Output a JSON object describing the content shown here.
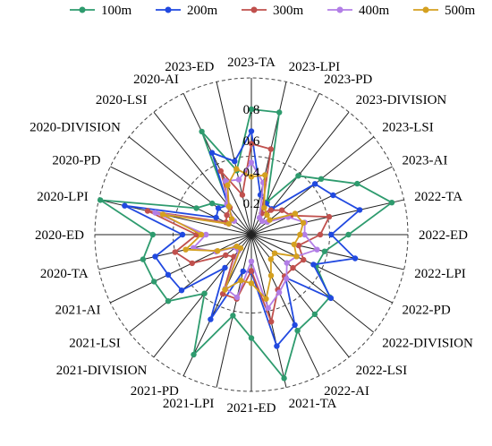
{
  "chart_data": {
    "type": "radar",
    "categories": [
      "2023-TA",
      "2023-LPI",
      "2023-PD",
      "2023-DIVISION",
      "2023-LSI",
      "2023-AI",
      "2022-TA",
      "2022-ED",
      "2022-LPI",
      "2022-PD",
      "2022-DIVISION",
      "2022-LSI",
      "2022-AI",
      "2021-TA",
      "2021-ED",
      "2021-LPI",
      "2021-PD",
      "2021-DIVISION",
      "2021-LSI",
      "2021-AI",
      "2020-TA",
      "2020-ED",
      "2020-LPI",
      "2020-PD",
      "2020-DIVISION",
      "2020-LSI",
      "2020-AI",
      "2023-ED"
    ],
    "rlim": [
      0,
      1.0
    ],
    "ticks": [
      "0.2",
      "0.4",
      "0.6",
      "0.8"
    ],
    "tick_values": [
      0.2,
      0.4,
      0.6,
      0.8
    ],
    "dashed_rings": [
      0.5,
      1.0
    ],
    "series": [
      {
        "name": "100m",
        "color": "#2e9b6e",
        "values": [
          0.8,
          0.8,
          0.23,
          0.48,
          0.57,
          0.75,
          0.92,
          0.62,
          0.48,
          0.46,
          0.64,
          0.65,
          0.68,
          0.94,
          0.66,
          0.53,
          0.85,
          0.48,
          0.68,
          0.69,
          0.71,
          0.63,
          0.99,
          0.39,
          0.32,
          0.23,
          0.73,
          0.42
        ]
      },
      {
        "name": "200m",
        "color": "#2149e0",
        "values": [
          0.66,
          0.26,
          0.22,
          0.21,
          0.52,
          0.58,
          0.71,
          0.51,
          0.68,
          0.44,
          0.65,
          0.35,
          0.64,
          0.73,
          0.24,
          0.24,
          0.6,
          0.27,
          0.57,
          0.59,
          0.63,
          0.44,
          0.83,
          0.25,
          0.27,
          0.24,
          0.58,
          0.48
        ]
      },
      {
        "name": "300m",
        "color": "#c0504d",
        "values": [
          0.58,
          0.56,
          0.15,
          0.2,
          0.25,
          0.28,
          0.51,
          0.44,
          0.31,
          0.37,
          0.34,
          0.34,
          0.39,
          0.57,
          0.23,
          0.42,
          0.42,
          0.18,
          0.21,
          0.42,
          0.5,
          0.35,
          0.68,
          0.18,
          0.2,
          0.22,
          0.45,
          0.26
        ]
      },
      {
        "name": "400m",
        "color": "#b27ee6",
        "values": [
          0.46,
          0.34,
          0.12,
          0.11,
          0.13,
          0.26,
          0.35,
          0.34,
          0.43,
          0.32,
          0.29,
          0.36,
          0.41,
          0.48,
          0.17,
          0.41,
          0.38,
          0.13,
          0.13,
          0.25,
          0.38,
          0.29,
          0.63,
          0.16,
          0.14,
          0.25,
          0.38,
          0.36
        ]
      },
      {
        "name": "500m",
        "color": "#d4a020",
        "values": [
          0.37,
          0.39,
          0.19,
          0.16,
          0.15,
          0.31,
          0.34,
          0.31,
          0.28,
          0.32,
          0.19,
          0.2,
          0.29,
          0.42,
          0.31,
          0.3,
          0.39,
          0.11,
          0.12,
          0.24,
          0.43,
          0.32,
          0.58,
          0.16,
          0.16,
          0.23,
          0.35,
          0.43
        ]
      }
    ]
  }
}
